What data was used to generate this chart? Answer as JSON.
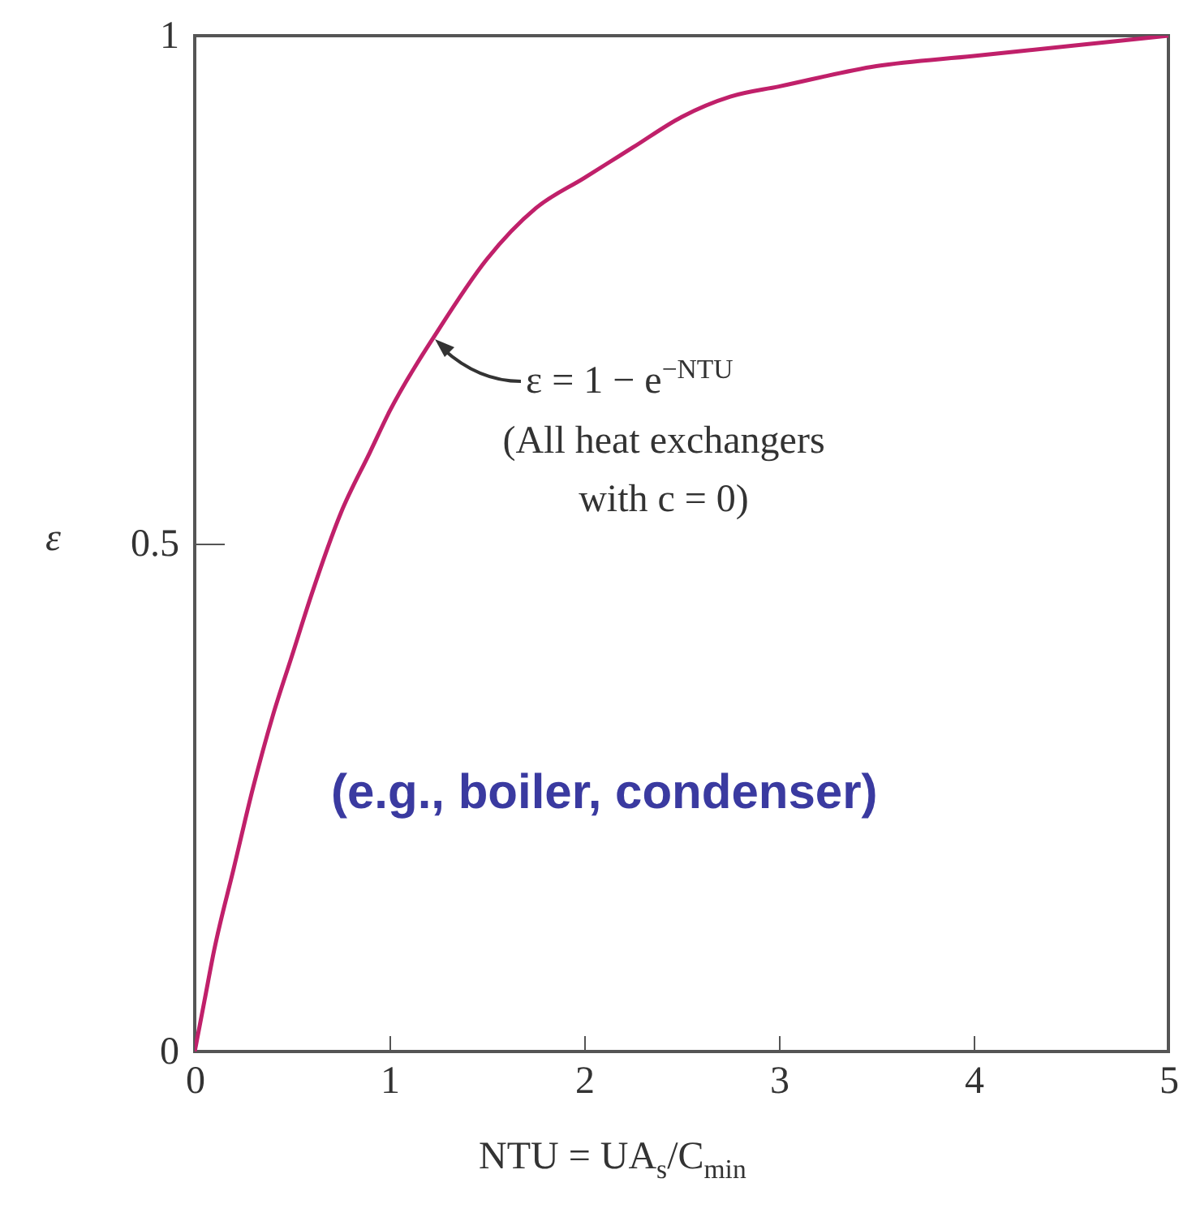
{
  "chart_data": {
    "type": "line",
    "xlabel": "NTU = UA$_{s}$/C$_{min}$",
    "ylabel": "ε",
    "x": [
      0,
      0.05,
      0.1,
      0.2,
      0.3,
      0.4,
      0.5,
      0.6,
      0.75,
      0.9,
      1,
      1.25,
      1.5,
      1.75,
      2,
      2.25,
      2.5,
      2.75,
      3,
      3.5,
      4,
      4.5,
      5
    ],
    "series": [
      {
        "color": "#c0206a",
        "values": [
          0,
          0.05,
          0.1,
          0.18,
          0.26,
          0.33,
          0.39,
          0.45,
          0.53,
          0.59,
          0.63,
          0.71,
          0.78,
          0.83,
          0.86,
          0.89,
          0.92,
          0.94,
          0.95,
          0.97,
          0.98,
          0.99,
          1.0
        ]
      }
    ],
    "xlim": [
      0,
      5
    ],
    "ylim": [
      0,
      1
    ],
    "xticks": [
      0,
      1,
      2,
      3,
      4,
      5
    ],
    "yticks": [
      0,
      0.5,
      1
    ],
    "grid": false,
    "annotations": [
      {
        "text": "ε = 1 − e$^{−NTU}$",
        "x": 1.2,
        "y": 0.71
      },
      "(All heat exchangers with c = 0)",
      "(e.g., boiler, condenser)"
    ]
  }
}
